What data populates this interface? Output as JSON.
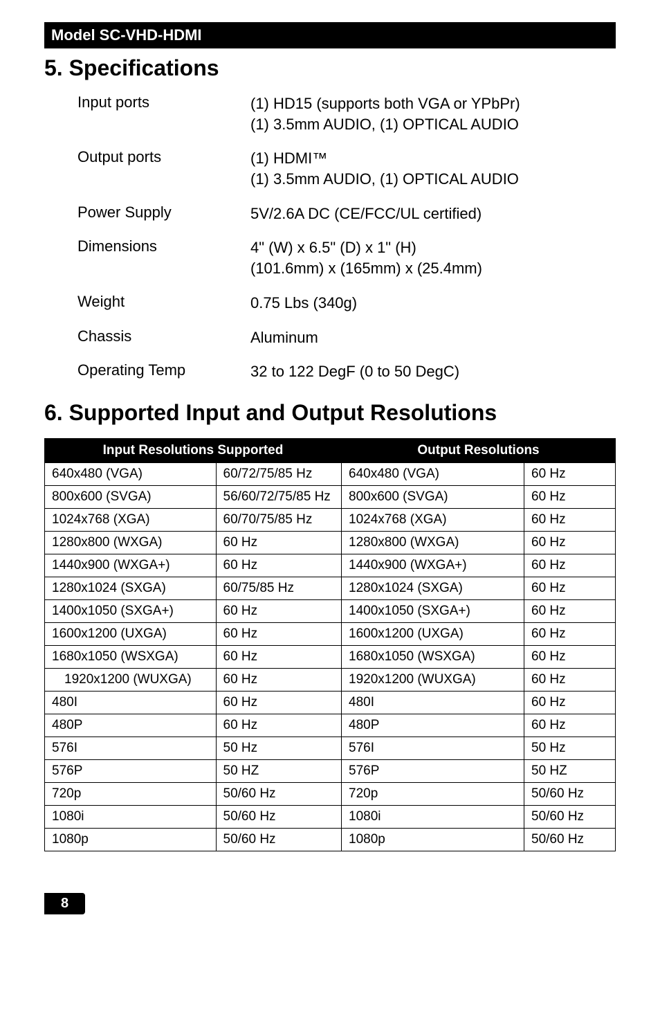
{
  "model_bar": "Model SC-VHD-HDMI",
  "section5_title": "5. Specifications",
  "specs": {
    "rows": [
      {
        "label": "Input ports",
        "value": "(1) HD15 (supports both VGA or YPbPr)\n(1) 3.5mm AUDIO, (1) OPTICAL AUDIO"
      },
      {
        "label": "Output ports",
        "value": "(1) HDMI™\n(1) 3.5mm AUDIO, (1) OPTICAL AUDIO"
      },
      {
        "label": "Power Supply",
        "value": "5V/2.6A DC (CE/FCC/UL certified)"
      },
      {
        "label": "Dimensions",
        "value": "4\" (W) x 6.5\" (D) x 1\" (H)\n(101.6mm) x (165mm) x (25.4mm)"
      },
      {
        "label": "Weight",
        "value": "0.75 Lbs (340g)"
      },
      {
        "label": "Chassis",
        "value": "Aluminum"
      },
      {
        "label": "Operating Temp",
        "value": "32 to 122 DegF (0 to 50 DegC)"
      }
    ]
  },
  "section6_title": "6. Supported Input and Output Resolutions",
  "res_table": {
    "header_in": "Input Resolutions Supported",
    "header_out": "Output Resolutions",
    "rows": [
      {
        "in_res": "640x480 (VGA)",
        "in_hz": "60/72/75/85 Hz",
        "out_res": "640x480 (VGA)",
        "out_hz": "60 Hz"
      },
      {
        "in_res": "800x600 (SVGA)",
        "in_hz": "56/60/72/75/85 Hz",
        "out_res": "800x600 (SVGA)",
        "out_hz": "60 Hz"
      },
      {
        "in_res": "1024x768 (XGA)",
        "in_hz": "60/70/75/85 Hz",
        "out_res": "1024x768 (XGA)",
        "out_hz": "60 Hz"
      },
      {
        "in_res": "1280x800 (WXGA)",
        "in_hz": "60 Hz",
        "out_res": "1280x800 (WXGA)",
        "out_hz": "60 Hz"
      },
      {
        "in_res": "1440x900 (WXGA+)",
        "in_hz": "60 Hz",
        "out_res": "1440x900 (WXGA+)",
        "out_hz": "60 Hz"
      },
      {
        "in_res": "1280x1024 (SXGA)",
        "in_hz": "60/75/85 Hz",
        "out_res": "1280x1024 (SXGA)",
        "out_hz": "60 Hz"
      },
      {
        "in_res": "1400x1050 (SXGA+)",
        "in_hz": "60 Hz",
        "out_res": "1400x1050 (SXGA+)",
        "out_hz": "60 Hz"
      },
      {
        "in_res": "1600x1200 (UXGA)",
        "in_hz": "60 Hz",
        "out_res": "1600x1200 (UXGA)",
        "out_hz": "60 Hz"
      },
      {
        "in_res": "1680x1050 (WSXGA)",
        "in_hz": "60 Hz",
        "out_res": "1680x1050 (WSXGA)",
        "out_hz": "60 Hz"
      },
      {
        "in_res": "1920x1200 (WUXGA)",
        "in_hz": "60 Hz",
        "out_res": "1920x1200 (WUXGA)",
        "out_hz": "60 Hz",
        "indent": true
      },
      {
        "in_res": "480I",
        "in_hz": "60 Hz",
        "out_res": "480I",
        "out_hz": "60 Hz"
      },
      {
        "in_res": "480P",
        "in_hz": "60 Hz",
        "out_res": "480P",
        "out_hz": "60 Hz"
      },
      {
        "in_res": "576I",
        "in_hz": "50 Hz",
        "out_res": "576I",
        "out_hz": "50 Hz"
      },
      {
        "in_res": "576P",
        "in_hz": "50 HZ",
        "out_res": "576P",
        "out_hz": "50 HZ"
      },
      {
        "in_res": "720p",
        "in_hz": "50/60 Hz",
        "out_res": "720p",
        "out_hz": "50/60 Hz"
      },
      {
        "in_res": "1080i",
        "in_hz": "50/60 Hz",
        "out_res": "1080i",
        "out_hz": "50/60 Hz"
      },
      {
        "in_res": "1080p",
        "in_hz": "50/60 Hz",
        "out_res": "1080p",
        "out_hz": "50/60 Hz"
      }
    ]
  },
  "page_number": "8"
}
